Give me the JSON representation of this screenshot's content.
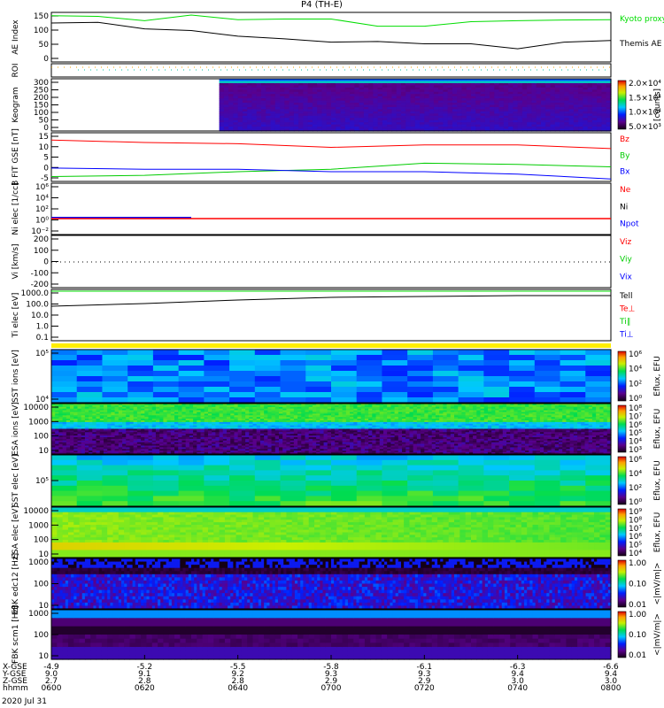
{
  "title": "P4 (TH-E)",
  "date": "2020 Jul 31",
  "xaxis": {
    "row_labels": [
      "X-GSE",
      "Y-GSE",
      "Z-GSE",
      "hhmm"
    ],
    "ticks": [
      {
        "x": "-4.9",
        "y": "9.0",
        "z": "2.7",
        "t": "0600"
      },
      {
        "x": "-5.2",
        "y": "9.1",
        "z": "2.8",
        "t": "0620"
      },
      {
        "x": "-5.5",
        "y": "9.2",
        "z": "2.8",
        "t": "0640"
      },
      {
        "x": "-5.8",
        "y": "9.3",
        "z": "2.9",
        "t": "0700"
      },
      {
        "x": "-6.1",
        "y": "9.3",
        "z": "2.9",
        "t": "0720"
      },
      {
        "x": "-6.3",
        "y": "9.4",
        "z": "3.0",
        "t": "0740"
      },
      {
        "x": "-6.6",
        "y": "9.4",
        "z": "3.0",
        "t": "0800"
      }
    ]
  },
  "chart_data": [
    {
      "type": "line",
      "id": "ae",
      "ylabel": "AE Index",
      "ylim": [
        0,
        150
      ],
      "yticks": [
        "150",
        "100",
        "50",
        "0"
      ],
      "series": [
        {
          "name": "Kyoto proxy AE",
          "color": "#00dd00",
          "x": [
            0,
            10,
            20,
            30,
            40,
            50,
            60,
            70,
            80,
            90,
            100,
            110,
            120
          ],
          "values": [
            140,
            138,
            125,
            142,
            128,
            130,
            130,
            108,
            108,
            122,
            125,
            127,
            128
          ]
        },
        {
          "name": "Themis AE",
          "color": "#000000",
          "x": [
            0,
            10,
            20,
            30,
            40,
            50,
            60,
            70,
            80,
            90,
            100,
            110,
            120
          ],
          "values": [
            118,
            120,
            100,
            95,
            78,
            70,
            60,
            62,
            55,
            55,
            40,
            60,
            65
          ]
        }
      ]
    },
    {
      "type": "line",
      "id": "roi",
      "ylabel": "ROI"
    },
    {
      "type": "heatmap",
      "id": "keogram",
      "ylabel": "Keogram",
      "yticks": [
        "300",
        "250",
        "200",
        "150",
        "100",
        "50",
        "0"
      ],
      "colorbar": [
        "2.0×10⁴",
        "1.5×10⁴",
        "1.0×10⁴",
        "5.0×10³"
      ],
      "cbar_unit": "[counts]"
    },
    {
      "type": "line",
      "id": "bfield",
      "ylabel": "B FIT GSE [nT]",
      "ylim": [
        -5,
        15
      ],
      "yticks": [
        "15",
        "10",
        "5",
        "0",
        "-5"
      ],
      "series": [
        {
          "name": "Bz",
          "color": "#ff0000",
          "x": [
            0,
            20,
            40,
            60,
            80,
            100,
            120
          ],
          "values": [
            12,
            11,
            10.5,
            9,
            10,
            10,
            8.5
          ]
        },
        {
          "name": "By",
          "color": "#00cc00",
          "x": [
            0,
            20,
            40,
            60,
            80,
            100,
            120
          ],
          "values": [
            -3,
            -2.5,
            -1,
            0,
            2.5,
            2,
            1
          ]
        },
        {
          "name": "Bx",
          "color": "#0000ff",
          "x": [
            0,
            20,
            40,
            60,
            80,
            100,
            120
          ],
          "values": [
            0.5,
            0,
            0,
            -1,
            -1,
            -2,
            -4
          ]
        }
      ]
    },
    {
      "type": "line",
      "id": "density",
      "ylabel": "Ni elec [1/cc]",
      "yticks": [
        "10⁶",
        "10⁴",
        "10²",
        "10⁰",
        "10⁻²"
      ],
      "series": [
        {
          "name": "Ne",
          "color": "#ff0000"
        },
        {
          "name": "Ni",
          "color": "#000000"
        },
        {
          "name": "Npot",
          "color": "#0000ff"
        }
      ]
    },
    {
      "type": "line",
      "id": "velocity",
      "ylabel": "Vi [km/s]",
      "yticks": [
        "200",
        "100",
        "0",
        "-100",
        "-200"
      ],
      "series": [
        {
          "name": "Viz",
          "color": "#ff0000"
        },
        {
          "name": "Viy",
          "color": "#00cc00"
        },
        {
          "name": "Vix",
          "color": "#0000ff"
        }
      ]
    },
    {
      "type": "line",
      "id": "temperature",
      "ylabel": "Ti elec [eV]",
      "yticks": [
        "1000.0",
        "100.0",
        "10.0",
        "1.0",
        "0.1"
      ],
      "series": [
        {
          "name": "Tell",
          "color": "#000000"
        },
        {
          "name": "Te⊥",
          "color": "#ff0000"
        },
        {
          "name": "Ti∥",
          "color": "#00cc00"
        },
        {
          "name": "Ti⊥",
          "color": "#0000ff"
        }
      ]
    },
    {
      "type": "heatmap",
      "id": "sst_ions",
      "ylabel": "SST ions [eV]",
      "yticks": [
        "10⁵",
        "10⁴"
      ],
      "colorbar": [
        "10⁶",
        "10⁴",
        "10²",
        "10⁰"
      ],
      "cbar_unit": "Eflux, EFU"
    },
    {
      "type": "heatmap",
      "id": "esa_ions",
      "ylabel": "ESA ions [eV]",
      "yticks": [
        "10000",
        "1000",
        "100",
        "10"
      ],
      "colorbar": [
        "10⁸",
        "10⁷",
        "10⁶",
        "10⁵",
        "10⁴",
        "10³"
      ],
      "cbar_unit": "Eflux, EFU"
    },
    {
      "type": "heatmap",
      "id": "sst_elec",
      "ylabel": "SST elec [eV]",
      "yticks": [
        "10⁵"
      ],
      "colorbar": [
        "10⁶",
        "10⁴",
        "10²",
        "10⁰"
      ],
      "cbar_unit": "Eflux, EFU"
    },
    {
      "type": "heatmap",
      "id": "esa_elec",
      "ylabel": "ESA elec [eV]",
      "yticks": [
        "10000",
        "1000",
        "100",
        "10"
      ],
      "colorbar": [
        "10⁹",
        "10⁸",
        "10⁷",
        "10⁶",
        "10⁵",
        "10⁴"
      ],
      "cbar_unit": "Eflux, EFU"
    },
    {
      "type": "heatmap",
      "id": "fbk_edc12",
      "ylabel": "FBK edc12 [Hz]",
      "yticks": [
        "1000",
        "100",
        "10"
      ],
      "colorbar": [
        "1.00",
        "0.10",
        "0.01"
      ],
      "cbar_unit": "<|mV/m|>"
    },
    {
      "type": "heatmap",
      "id": "fbk_scm1",
      "ylabel": "FBK scm1 [Hz]",
      "yticks": [
        "1000",
        "100",
        "10"
      ],
      "colorbar": [
        "1.00",
        "0.10",
        "0.01"
      ],
      "cbar_unit": "<|mV/m|>"
    }
  ]
}
